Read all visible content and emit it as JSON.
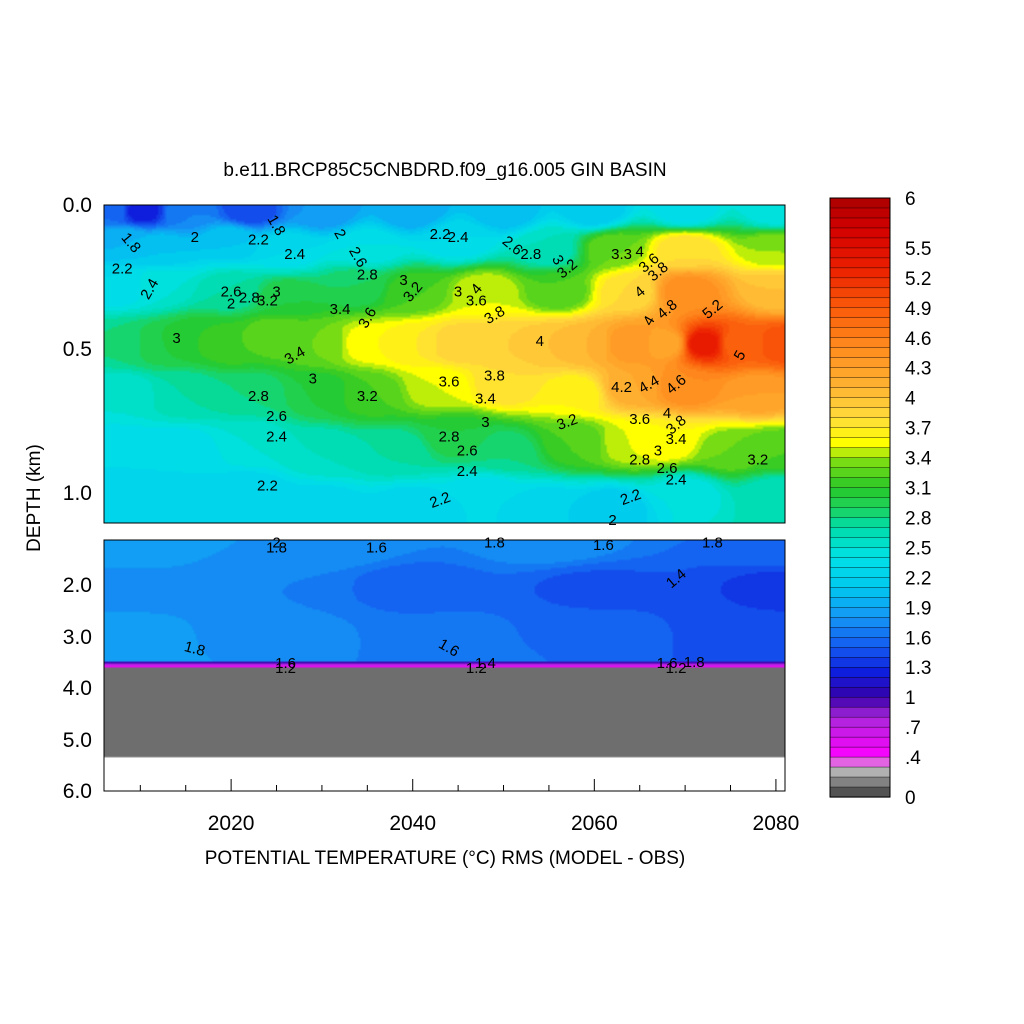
{
  "chart_data": {
    "type": "heatmap",
    "title": "b.e11.BRCP85C5CNBDRD.f09_g16.005 GIN BASIN",
    "xlabel": "POTENTIAL TEMPERATURE (°C) RMS (MODEL - OBS)",
    "ylabel": "DEPTH (km)",
    "x_range": [
      2006,
      2081
    ],
    "x_ticks": [
      "2020",
      "2040",
      "2060",
      "2080"
    ],
    "y_upper_range_km": [
      0.0,
      1.1
    ],
    "y_lower_range_km": [
      1.1,
      6.0
    ],
    "y_ticks_upper": [
      "0.0",
      "0.5",
      "1.0"
    ],
    "y_ticks_lower": [
      "2.0",
      "3.0",
      "4.0",
      "5.0",
      "6.0"
    ],
    "seafloor_km": 3.6,
    "colorbar": {
      "min": 0,
      "max": 6,
      "labels": [
        "6",
        "5.5",
        "5.2",
        "4.9",
        "4.6",
        "4.3",
        "4",
        "3.7",
        "3.4",
        "3.1",
        "2.8",
        "2.5",
        "2.2",
        "1.9",
        "1.6",
        "1.3",
        "1",
        ".7",
        ".4",
        "0"
      ]
    },
    "anchors_upper": [
      {
        "x": 2007,
        "z": 0.02,
        "v": 1.6
      },
      {
        "x": 2010,
        "z": 0.02,
        "v": 1.2
      },
      {
        "x": 2015,
        "z": 0.02,
        "v": 1.7
      },
      {
        "x": 2022,
        "z": 0.02,
        "v": 1.4
      },
      {
        "x": 2030,
        "z": 0.02,
        "v": 1.8
      },
      {
        "x": 2040,
        "z": 0.02,
        "v": 1.9
      },
      {
        "x": 2050,
        "z": 0.02,
        "v": 2.0
      },
      {
        "x": 2060,
        "z": 0.02,
        "v": 2.1
      },
      {
        "x": 2070,
        "z": 0.02,
        "v": 2.3
      },
      {
        "x": 2080,
        "z": 0.02,
        "v": 2.4
      },
      {
        "x": 2008,
        "z": 0.12,
        "v": 2.0
      },
      {
        "x": 2012,
        "z": 0.15,
        "v": 2.1
      },
      {
        "x": 2020,
        "z": 0.12,
        "v": 2.1
      },
      {
        "x": 2026,
        "z": 0.15,
        "v": 2.3
      },
      {
        "x": 2035,
        "z": 0.15,
        "v": 2.4
      },
      {
        "x": 2045,
        "z": 0.12,
        "v": 2.3
      },
      {
        "x": 2055,
        "z": 0.15,
        "v": 2.6
      },
      {
        "x": 2062,
        "z": 0.15,
        "v": 3.3
      },
      {
        "x": 2070,
        "z": 0.15,
        "v": 3.8
      },
      {
        "x": 2080,
        "z": 0.15,
        "v": 3.4
      },
      {
        "x": 2008,
        "z": 0.28,
        "v": 2.3
      },
      {
        "x": 2012,
        "z": 0.28,
        "v": 2.5
      },
      {
        "x": 2020,
        "z": 0.3,
        "v": 2.7
      },
      {
        "x": 2026,
        "z": 0.32,
        "v": 3.0
      },
      {
        "x": 2034,
        "z": 0.28,
        "v": 2.9
      },
      {
        "x": 2040,
        "z": 0.3,
        "v": 3.2
      },
      {
        "x": 2048,
        "z": 0.3,
        "v": 3.5
      },
      {
        "x": 2056,
        "z": 0.3,
        "v": 3.2
      },
      {
        "x": 2064,
        "z": 0.3,
        "v": 3.8
      },
      {
        "x": 2070,
        "z": 0.3,
        "v": 4.5
      },
      {
        "x": 2080,
        "z": 0.3,
        "v": 4.0
      },
      {
        "x": 2008,
        "z": 0.48,
        "v": 2.8
      },
      {
        "x": 2012,
        "z": 0.48,
        "v": 3.0
      },
      {
        "x": 2016,
        "z": 0.46,
        "v": 3.1
      },
      {
        "x": 2020,
        "z": 0.48,
        "v": 3.2
      },
      {
        "x": 2025,
        "z": 0.45,
        "v": 3.3
      },
      {
        "x": 2030,
        "z": 0.48,
        "v": 3.3
      },
      {
        "x": 2035,
        "z": 0.48,
        "v": 3.6
      },
      {
        "x": 2040,
        "z": 0.48,
        "v": 3.7
      },
      {
        "x": 2045,
        "z": 0.48,
        "v": 3.9
      },
      {
        "x": 2050,
        "z": 0.48,
        "v": 3.9
      },
      {
        "x": 2055,
        "z": 0.48,
        "v": 4.0
      },
      {
        "x": 2059,
        "z": 0.48,
        "v": 4.1
      },
      {
        "x": 2064,
        "z": 0.48,
        "v": 4.4
      },
      {
        "x": 2068,
        "z": 0.48,
        "v": 4.2
      },
      {
        "x": 2072,
        "z": 0.48,
        "v": 5.4
      },
      {
        "x": 2076,
        "z": 0.48,
        "v": 4.8
      },
      {
        "x": 2081,
        "z": 0.48,
        "v": 5.0
      },
      {
        "x": 2008,
        "z": 0.65,
        "v": 2.5
      },
      {
        "x": 2015,
        "z": 0.65,
        "v": 2.7
      },
      {
        "x": 2022,
        "z": 0.65,
        "v": 2.8
      },
      {
        "x": 2030,
        "z": 0.65,
        "v": 3.0
      },
      {
        "x": 2035,
        "z": 0.65,
        "v": 3.2
      },
      {
        "x": 2043,
        "z": 0.63,
        "v": 3.5
      },
      {
        "x": 2050,
        "z": 0.62,
        "v": 3.8
      },
      {
        "x": 2058,
        "z": 0.65,
        "v": 3.6
      },
      {
        "x": 2064,
        "z": 0.63,
        "v": 4.2
      },
      {
        "x": 2070,
        "z": 0.63,
        "v": 4.5
      },
      {
        "x": 2078,
        "z": 0.65,
        "v": 4.3
      },
      {
        "x": 2008,
        "z": 0.85,
        "v": 2.3
      },
      {
        "x": 2015,
        "z": 0.85,
        "v": 2.3
      },
      {
        "x": 2022,
        "z": 0.82,
        "v": 2.5
      },
      {
        "x": 2030,
        "z": 0.85,
        "v": 2.6
      },
      {
        "x": 2038,
        "z": 0.85,
        "v": 2.7
      },
      {
        "x": 2045,
        "z": 0.8,
        "v": 3.0
      },
      {
        "x": 2050,
        "z": 0.85,
        "v": 2.8
      },
      {
        "x": 2058,
        "z": 0.82,
        "v": 3.2
      },
      {
        "x": 2064,
        "z": 0.82,
        "v": 3.5
      },
      {
        "x": 2068,
        "z": 0.82,
        "v": 3.6
      },
      {
        "x": 2075,
        "z": 0.85,
        "v": 3.3
      },
      {
        "x": 2080,
        "z": 0.85,
        "v": 3.2
      },
      {
        "x": 2008,
        "z": 1.05,
        "v": 2.2
      },
      {
        "x": 2015,
        "z": 1.05,
        "v": 2.2
      },
      {
        "x": 2022,
        "z": 1.0,
        "v": 2.2
      },
      {
        "x": 2030,
        "z": 1.05,
        "v": 2.2
      },
      {
        "x": 2040,
        "z": 1.05,
        "v": 2.2
      },
      {
        "x": 2048,
        "z": 1.0,
        "v": 2.3
      },
      {
        "x": 2055,
        "z": 1.05,
        "v": 2.2
      },
      {
        "x": 2062,
        "z": 1.05,
        "v": 2.1
      },
      {
        "x": 2070,
        "z": 1.0,
        "v": 2.4
      },
      {
        "x": 2080,
        "z": 1.0,
        "v": 2.6
      }
    ],
    "anchors_lower": [
      {
        "x": 2007,
        "z": 1.2,
        "v": 1.9
      },
      {
        "x": 2030,
        "z": 1.2,
        "v": 1.8
      },
      {
        "x": 2055,
        "z": 1.2,
        "v": 1.75
      },
      {
        "x": 2081,
        "z": 1.2,
        "v": 1.6
      },
      {
        "x": 2007,
        "z": 2.0,
        "v": 1.75
      },
      {
        "x": 2025,
        "z": 2.0,
        "v": 1.7
      },
      {
        "x": 2040,
        "z": 2.0,
        "v": 1.55
      },
      {
        "x": 2060,
        "z": 2.0,
        "v": 1.48
      },
      {
        "x": 2081,
        "z": 2.0,
        "v": 1.38
      },
      {
        "x": 2007,
        "z": 3.0,
        "v": 1.85
      },
      {
        "x": 2025,
        "z": 3.0,
        "v": 1.75
      },
      {
        "x": 2045,
        "z": 3.0,
        "v": 1.62
      },
      {
        "x": 2060,
        "z": 3.0,
        "v": 1.52
      },
      {
        "x": 2081,
        "z": 3.0,
        "v": 1.4
      },
      {
        "x": 2007,
        "z": 3.4,
        "v": 1.85
      },
      {
        "x": 2045,
        "z": 3.4,
        "v": 1.7
      },
      {
        "x": 2081,
        "z": 3.4,
        "v": 1.5
      }
    ],
    "contour_labels": [
      {
        "text": "1.8",
        "x": 2009,
        "z": 0.13,
        "rot": 50
      },
      {
        "text": "2.2",
        "x": 2008,
        "z": 0.22,
        "rot": 0
      },
      {
        "text": "2.4",
        "x": 2011,
        "z": 0.29,
        "rot": -60
      },
      {
        "text": "2",
        "x": 2016,
        "z": 0.11,
        "rot": 0
      },
      {
        "text": "2.2",
        "x": 2023,
        "z": 0.12,
        "rot": 0
      },
      {
        "text": "1.8",
        "x": 2025,
        "z": 0.07,
        "rot": 60
      },
      {
        "text": "2.4",
        "x": 2027,
        "z": 0.17,
        "rot": 0
      },
      {
        "text": "2.6",
        "x": 2020,
        "z": 0.3,
        "rot": 0
      },
      {
        "text": "2",
        "x": 2020,
        "z": 0.34,
        "rot": 0
      },
      {
        "text": "2.8",
        "x": 2022,
        "z": 0.32,
        "rot": 0
      },
      {
        "text": "3.2",
        "x": 2024,
        "z": 0.33,
        "rot": 0
      },
      {
        "text": "3",
        "x": 2025,
        "z": 0.3,
        "rot": 0
      },
      {
        "text": "3",
        "x": 2014,
        "z": 0.46,
        "rot": 0
      },
      {
        "text": "3.4",
        "x": 2027,
        "z": 0.52,
        "rot": -30
      },
      {
        "text": "3",
        "x": 2029,
        "z": 0.6,
        "rot": 0
      },
      {
        "text": "2.8",
        "x": 2023,
        "z": 0.66,
        "rot": 0
      },
      {
        "text": "2.6",
        "x": 2025,
        "z": 0.73,
        "rot": 0
      },
      {
        "text": "2.4",
        "x": 2025,
        "z": 0.8,
        "rot": 0
      },
      {
        "text": "2.2",
        "x": 2024,
        "z": 0.97,
        "rot": 0
      },
      {
        "text": "2",
        "x": 2032,
        "z": 0.1,
        "rot": 60
      },
      {
        "text": "2.6",
        "x": 2034,
        "z": 0.18,
        "rot": 60
      },
      {
        "text": "2.8",
        "x": 2035,
        "z": 0.24,
        "rot": 0
      },
      {
        "text": "3.4",
        "x": 2032,
        "z": 0.36,
        "rot": 0
      },
      {
        "text": "3.6",
        "x": 2035,
        "z": 0.39,
        "rot": -60
      },
      {
        "text": "3",
        "x": 2039,
        "z": 0.26,
        "rot": 0
      },
      {
        "text": "3.2",
        "x": 2040,
        "z": 0.3,
        "rot": -50
      },
      {
        "text": "3.2",
        "x": 2035,
        "z": 0.66,
        "rot": 0
      },
      {
        "text": "2.2",
        "x": 2043,
        "z": 0.1,
        "rot": 0
      },
      {
        "text": "2.4",
        "x": 2045,
        "z": 0.11,
        "rot": 0
      },
      {
        "text": "3",
        "x": 2045,
        "z": 0.3,
        "rot": 0
      },
      {
        "text": "4",
        "x": 2047,
        "z": 0.29,
        "rot": -50
      },
      {
        "text": "3.6",
        "x": 2047,
        "z": 0.33,
        "rot": 0
      },
      {
        "text": "3.8",
        "x": 2049,
        "z": 0.38,
        "rot": -30
      },
      {
        "text": "3.6",
        "x": 2044,
        "z": 0.61,
        "rot": 0
      },
      {
        "text": "3.8",
        "x": 2049,
        "z": 0.59,
        "rot": 0
      },
      {
        "text": "3.4",
        "x": 2048,
        "z": 0.67,
        "rot": 0
      },
      {
        "text": "3",
        "x": 2048,
        "z": 0.75,
        "rot": 0
      },
      {
        "text": "2.8",
        "x": 2044,
        "z": 0.8,
        "rot": 0
      },
      {
        "text": "2.6",
        "x": 2046,
        "z": 0.85,
        "rot": 0
      },
      {
        "text": "2.4",
        "x": 2046,
        "z": 0.92,
        "rot": 0
      },
      {
        "text": "2.2",
        "x": 2043,
        "z": 1.02,
        "rot": -20
      },
      {
        "text": "2.6",
        "x": 2051,
        "z": 0.14,
        "rot": 40
      },
      {
        "text": "2.8",
        "x": 2053,
        "z": 0.17,
        "rot": 0
      },
      {
        "text": "3",
        "x": 2056,
        "z": 0.19,
        "rot": 60
      },
      {
        "text": "3.2",
        "x": 2057,
        "z": 0.22,
        "rot": -40
      },
      {
        "text": "4",
        "x": 2054,
        "z": 0.47,
        "rot": 0
      },
      {
        "text": "3.2",
        "x": 2057,
        "z": 0.75,
        "rot": -20
      },
      {
        "text": "3.3",
        "x": 2063,
        "z": 0.17,
        "rot": 0
      },
      {
        "text": "4",
        "x": 2065,
        "z": 0.16,
        "rot": 0
      },
      {
        "text": "3.6",
        "x": 2066,
        "z": 0.2,
        "rot": -40
      },
      {
        "text": "3.8",
        "x": 2067,
        "z": 0.23,
        "rot": -40
      },
      {
        "text": "4.8",
        "x": 2068,
        "z": 0.36,
        "rot": -40
      },
      {
        "text": "4",
        "x": 2065,
        "z": 0.3,
        "rot": -40
      },
      {
        "text": "4",
        "x": 2066,
        "z": 0.4,
        "rot": -60
      },
      {
        "text": "5.2",
        "x": 2073,
        "z": 0.36,
        "rot": -40
      },
      {
        "text": "5",
        "x": 2076,
        "z": 0.52,
        "rot": -60
      },
      {
        "text": "4.2",
        "x": 2063,
        "z": 0.63,
        "rot": 0
      },
      {
        "text": "4.4",
        "x": 2066,
        "z": 0.62,
        "rot": -30
      },
      {
        "text": "4.6",
        "x": 2069,
        "z": 0.62,
        "rot": -40
      },
      {
        "text": "3.6",
        "x": 2065,
        "z": 0.74,
        "rot": 0
      },
      {
        "text": "4",
        "x": 2068,
        "z": 0.72,
        "rot": 0
      },
      {
        "text": "3.8",
        "x": 2069,
        "z": 0.76,
        "rot": -40
      },
      {
        "text": "3.4",
        "x": 2069,
        "z": 0.81,
        "rot": 0
      },
      {
        "text": "3",
        "x": 2067,
        "z": 0.85,
        "rot": 0
      },
      {
        "text": "2.8",
        "x": 2065,
        "z": 0.88,
        "rot": 0
      },
      {
        "text": "2.6",
        "x": 2068,
        "z": 0.91,
        "rot": 0
      },
      {
        "text": "2.4",
        "x": 2069,
        "z": 0.95,
        "rot": 0
      },
      {
        "text": "2.2",
        "x": 2064,
        "z": 1.01,
        "rot": -20
      },
      {
        "text": "2",
        "x": 2062,
        "z": 1.09,
        "rot": 0
      },
      {
        "text": "3.2",
        "x": 2078,
        "z": 0.88,
        "rot": 0
      },
      {
        "text": "1.8",
        "x": 2025,
        "z": 1.25,
        "rot": 0
      },
      {
        "text": "2",
        "x": 2025,
        "z": 1.15,
        "rot": 0
      },
      {
        "text": "1.6",
        "x": 2036,
        "z": 1.25,
        "rot": 0
      },
      {
        "text": "1.8",
        "x": 2049,
        "z": 1.15,
        "rot": 0
      },
      {
        "text": "1.6",
        "x": 2061,
        "z": 1.2,
        "rot": 0
      },
      {
        "text": "1.8",
        "x": 2073,
        "z": 1.15,
        "rot": 0
      },
      {
        "text": "1.4",
        "x": 2069,
        "z": 1.85,
        "rot": -40
      },
      {
        "text": "1.8",
        "x": 2016,
        "z": 3.22,
        "rot": 15
      },
      {
        "text": "1.6",
        "x": 2044,
        "z": 3.2,
        "rot": 30
      },
      {
        "text": "1.6",
        "x": 2026,
        "z": 3.5,
        "rot": 0
      },
      {
        "text": "1.2",
        "x": 2026,
        "z": 3.6,
        "rot": 0
      },
      {
        "text": "1.4",
        "x": 2048,
        "z": 3.5,
        "rot": 0
      },
      {
        "text": "1.2",
        "x": 2047,
        "z": 3.6,
        "rot": 0
      },
      {
        "text": "1.6",
        "x": 2068,
        "z": 3.5,
        "rot": 0
      },
      {
        "text": "1.2",
        "x": 2069,
        "z": 3.6,
        "rot": 0
      },
      {
        "text": "1.8",
        "x": 2071,
        "z": 3.48,
        "rot": 0
      }
    ]
  }
}
